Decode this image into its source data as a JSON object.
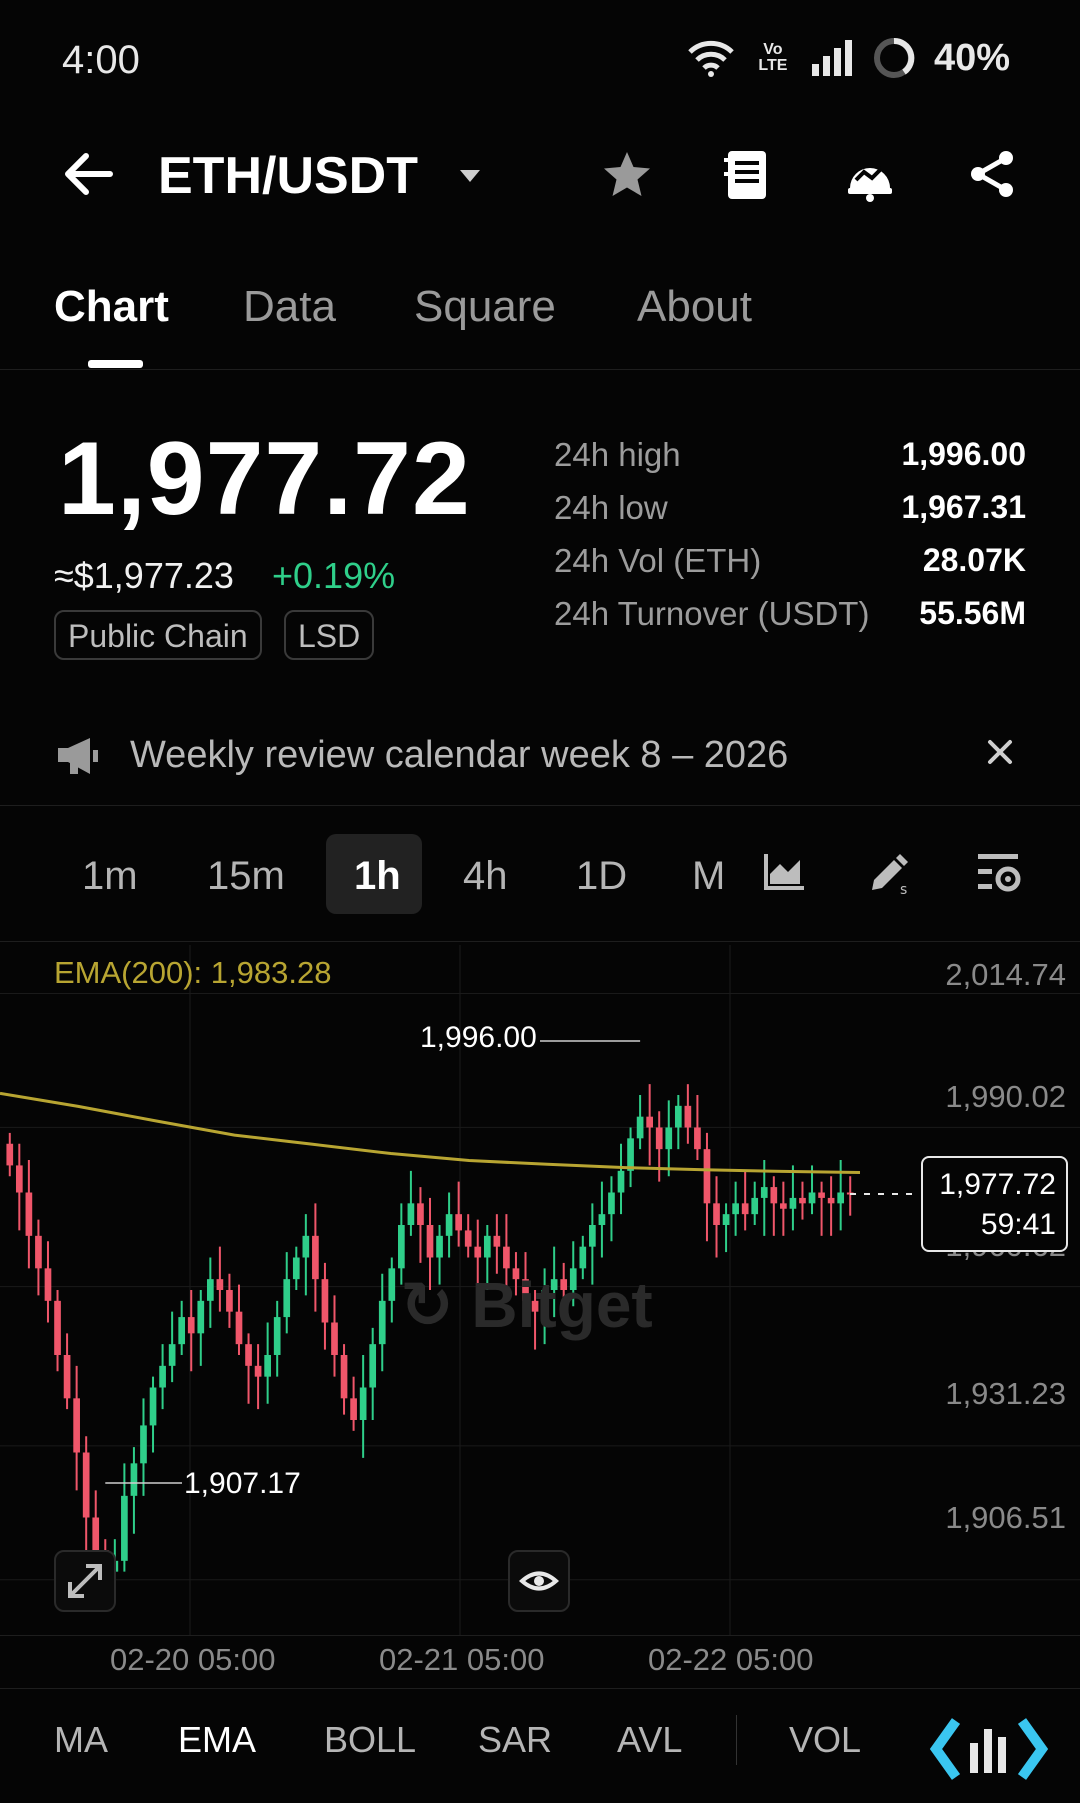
{
  "status_bar": {
    "time": "4:00",
    "volte": "Vo LTE",
    "battery": "40%",
    "icons": [
      "wifi-icon",
      "volte-icon",
      "signal-icon",
      "battery-ring-icon"
    ]
  },
  "header": {
    "pair": "ETH/USDT",
    "icons": [
      "back-arrow-icon",
      "dropdown-caret-icon",
      "star-icon",
      "notebook-icon",
      "alert-bot-icon",
      "share-icon"
    ]
  },
  "tabs": [
    {
      "label": "Chart",
      "active": true
    },
    {
      "label": "Data",
      "active": false
    },
    {
      "label": "Square",
      "active": false
    },
    {
      "label": "About",
      "active": false
    }
  ],
  "ticker": {
    "price": "1,977.72",
    "usd_price": "≈$1,977.23",
    "change": "+0.19%",
    "change_color": "#2fcf8a",
    "tags": [
      "Public Chain",
      "LSD"
    ],
    "stats": [
      {
        "label": "24h high",
        "value": "1,996.00"
      },
      {
        "label": "24h low",
        "value": "1,967.31"
      },
      {
        "label": "24h Vol (ETH)",
        "value": "28.07K"
      },
      {
        "label": "24h Turnover (USDT)",
        "value": "55.56M"
      }
    ]
  },
  "banner": {
    "text": "Weekly review calendar week 8 – 2026",
    "icons": [
      "megaphone-icon",
      "close-icon"
    ]
  },
  "intervals": {
    "items": [
      "1m",
      "15m",
      "1h",
      "4h",
      "1D",
      "M"
    ],
    "selected": "1h",
    "tool_icons": [
      "chart-type-icon",
      "draw-tool-icon",
      "chart-settings-icon"
    ]
  },
  "chart": {
    "ema_label": "EMA(200): 1,983.28",
    "ema_color": "#b8a532",
    "up_color": "#2fcf8a",
    "down_color": "#f0566a",
    "y_ticks": [
      "2,014.74",
      "1,990.02",
      "1,960.62",
      "1,931.23",
      "1,906.51"
    ],
    "x_ticks": [
      "02-20 05:00",
      "02-21 05:00",
      "02-22 05:00"
    ],
    "high_marker": "1,996.00",
    "low_marker": "1,907.17",
    "last_price": "1,977.72",
    "countdown": "59:41",
    "watermark": "Bitget"
  },
  "chart_data": {
    "type": "candlestick",
    "interval": "1h",
    "y_range": [
      1900,
      2020
    ],
    "ema200_value": 1983.28,
    "last_price": 1977.72,
    "high": 1996.0,
    "low": 1907.17,
    "x_ticks": [
      "02-20 05:00",
      "02-21 05:00",
      "02-22 05:00"
    ],
    "y_ticks": [
      2014.74,
      1990.02,
      1960.62,
      1931.23,
      1906.51
    ],
    "ema_points": [
      1996.3,
      1993.9,
      1991.2,
      1988.6,
      1986.9,
      1985.2,
      1983.9,
      1983.2,
      1982.6,
      1982.2,
      1981.9,
      1981.7
    ],
    "candles_close": [
      1983,
      1978,
      1970,
      1964,
      1958,
      1948,
      1940,
      1930,
      1918,
      1912,
      1908,
      1910,
      1922,
      1928,
      1935,
      1942,
      1946,
      1950,
      1955,
      1952,
      1958,
      1962,
      1960,
      1956,
      1950,
      1946,
      1944,
      1948,
      1955,
      1962,
      1966,
      1970,
      1962,
      1954,
      1948,
      1940,
      1936,
      1942,
      1950,
      1958,
      1964,
      1972,
      1976,
      1972,
      1966,
      1970,
      1974,
      1971,
      1968,
      1966,
      1970,
      1968,
      1964,
      1962,
      1958,
      1956,
      1960,
      1962,
      1960,
      1964,
      1968,
      1972,
      1974,
      1978,
      1982,
      1988,
      1992,
      1990,
      1986,
      1990,
      1994,
      1990,
      1986,
      1976,
      1972,
      1974,
      1976,
      1974,
      1977,
      1979,
      1976,
      1975,
      1977,
      1976,
      1978,
      1977,
      1976,
      1978,
      1977.72
    ]
  },
  "indicators": {
    "items": [
      "MA",
      "EMA",
      "BOLL",
      "SAR",
      "AVL",
      "VOL"
    ],
    "selected": "EMA",
    "extra_icon": "indicator-tool-icon"
  }
}
